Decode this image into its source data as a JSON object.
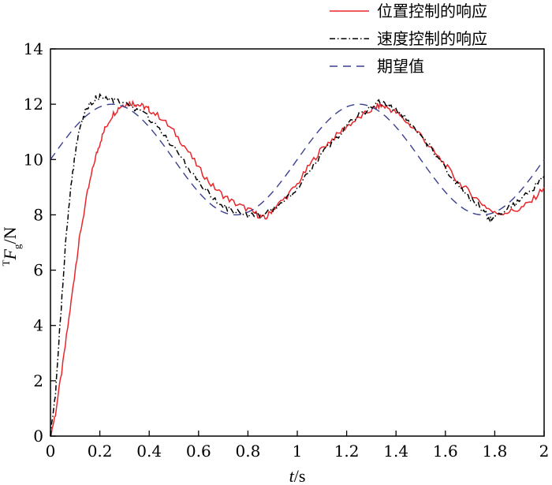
{
  "chart_data": {
    "type": "line",
    "xlabel": {
      "italic": "t",
      "rest": "/s"
    },
    "ylabel": {
      "superscript": "T",
      "italic": "F",
      "subscript": "g",
      "rest": "/N"
    },
    "xlim": [
      0,
      2
    ],
    "ylim": [
      0,
      14
    ],
    "xticks": [
      0,
      0.2,
      0.4,
      0.6,
      0.8,
      1,
      1.2,
      1.4,
      1.6,
      1.8,
      2
    ],
    "xtick_labels": [
      "0",
      "0.2",
      "0.4",
      "0.6",
      "0.8",
      "1",
      "1.2",
      "1.4",
      "1.6",
      "1.8",
      "2"
    ],
    "yticks": [
      0,
      2,
      4,
      6,
      8,
      10,
      12,
      14
    ],
    "ytick_labels": [
      "0",
      "2",
      "4",
      "6",
      "8",
      "10",
      "12",
      "14"
    ],
    "grid": false,
    "legend_position": "top-right",
    "series": [
      {
        "name": "位置控制的响应",
        "color": "#e8262a",
        "style": "solid",
        "x": [
          0,
          0.02,
          0.05,
          0.08,
          0.1,
          0.12,
          0.15,
          0.18,
          0.2,
          0.22,
          0.25,
          0.28,
          0.3,
          0.33,
          0.35,
          0.38,
          0.4,
          0.45,
          0.5,
          0.55,
          0.6,
          0.65,
          0.7,
          0.75,
          0.8,
          0.84,
          0.87,
          0.9,
          0.95,
          1.0,
          1.05,
          1.1,
          1.15,
          1.2,
          1.25,
          1.3,
          1.33,
          1.36,
          1.4,
          1.45,
          1.5,
          1.55,
          1.6,
          1.65,
          1.7,
          1.75,
          1.8,
          1.85,
          1.9,
          1.95,
          2.0
        ],
        "y": [
          0,
          0.8,
          2.6,
          4.6,
          6.0,
          7.3,
          8.8,
          10.0,
          10.6,
          11.1,
          11.6,
          11.9,
          12.0,
          12.05,
          12.0,
          11.9,
          11.8,
          11.5,
          11.0,
          10.4,
          9.7,
          9.1,
          8.7,
          8.4,
          8.2,
          8.0,
          7.85,
          8.2,
          8.6,
          9.1,
          9.8,
          10.4,
          10.8,
          11.2,
          11.5,
          11.8,
          11.95,
          11.9,
          11.7,
          11.3,
          10.9,
          10.3,
          9.8,
          9.2,
          8.8,
          8.4,
          8.05,
          8.1,
          8.2,
          8.5,
          9.0
        ]
      },
      {
        "name": "速度控制的响应",
        "color": "#000000",
        "style": "dashdot",
        "x": [
          0,
          0.02,
          0.04,
          0.06,
          0.08,
          0.1,
          0.12,
          0.14,
          0.16,
          0.18,
          0.2,
          0.23,
          0.26,
          0.3,
          0.35,
          0.4,
          0.45,
          0.5,
          0.55,
          0.6,
          0.65,
          0.7,
          0.75,
          0.8,
          0.85,
          0.9,
          0.95,
          1.0,
          1.05,
          1.1,
          1.15,
          1.2,
          1.25,
          1.3,
          1.33,
          1.36,
          1.4,
          1.45,
          1.5,
          1.55,
          1.6,
          1.65,
          1.7,
          1.75,
          1.78,
          1.8,
          1.85,
          1.9,
          1.95,
          2.0
        ],
        "y": [
          0,
          1.5,
          4.2,
          6.8,
          8.8,
          10.2,
          11.2,
          11.7,
          12.0,
          12.2,
          12.25,
          12.15,
          12.1,
          12.05,
          11.8,
          11.5,
          11.0,
          10.4,
          9.8,
          9.2,
          8.7,
          8.3,
          8.1,
          8.0,
          8.0,
          8.2,
          8.5,
          9.0,
          9.6,
          10.2,
          10.7,
          11.2,
          11.6,
          11.9,
          12.05,
          11.95,
          11.8,
          11.4,
          10.9,
          10.3,
          9.7,
          9.1,
          8.6,
          8.2,
          7.85,
          7.95,
          8.2,
          8.5,
          8.9,
          9.4
        ]
      },
      {
        "name": "期望值",
        "color": "#3a3f8f",
        "style": "dashed",
        "fn": {
          "offset": 10,
          "amplitude": 2,
          "period": 1.0
        },
        "x_range": [
          0,
          2
        ]
      }
    ]
  }
}
